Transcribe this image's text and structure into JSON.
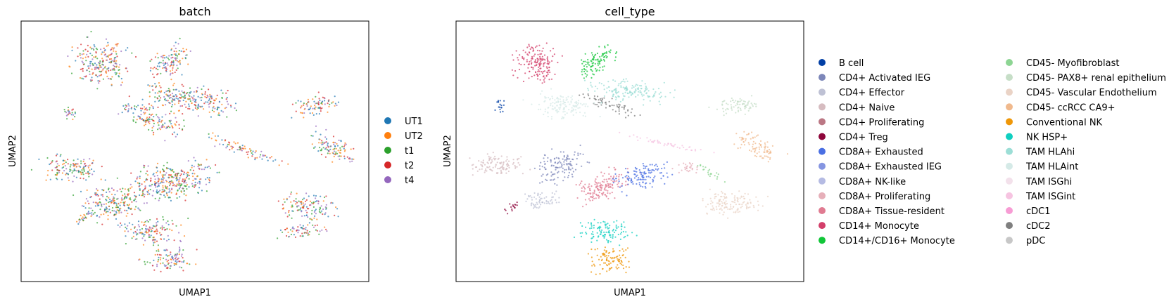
{
  "chart_data": [
    {
      "type": "scatter",
      "title": "batch",
      "xlabel": "UMAP1",
      "ylabel": "UMAP2",
      "grid": false,
      "legend_position": "right",
      "series": [
        {
          "name": "UT1",
          "color": "#1f77b4"
        },
        {
          "name": "UT2",
          "color": "#ff7f0e"
        },
        {
          "name": "t1",
          "color": "#2ca02c"
        },
        {
          "name": "t2",
          "color": "#d62728"
        },
        {
          "name": "t4",
          "color": "#9467bd"
        }
      ]
    },
    {
      "type": "scatter",
      "title": "cell_type",
      "xlabel": "UMAP1",
      "ylabel": "UMAP2",
      "grid": false,
      "legend_position": "right",
      "series": [
        {
          "name": "B cell",
          "color": "#023fa5"
        },
        {
          "name": "CD4+ Activated IEG",
          "color": "#7d87b9"
        },
        {
          "name": "CD4+ Effector",
          "color": "#bec1d4"
        },
        {
          "name": "CD4+ Naive",
          "color": "#d6bcc0"
        },
        {
          "name": "CD4+ Proliferating",
          "color": "#bb7784"
        },
        {
          "name": "CD4+ Treg",
          "color": "#8e063b"
        },
        {
          "name": "CD8A+ Exhausted",
          "color": "#4a6fe3"
        },
        {
          "name": "CD8A+ Exhausted IEG",
          "color": "#8595e1"
        },
        {
          "name": "CD8A+ NK-like",
          "color": "#b5bbe3"
        },
        {
          "name": "CD8A+ Proliferating",
          "color": "#e6afb9"
        },
        {
          "name": "CD8A+ Tissue-resident",
          "color": "#e07b91"
        },
        {
          "name": "CD14+ Monocyte",
          "color": "#d33f6a"
        },
        {
          "name": "CD14+/CD16+ Monocyte",
          "color": "#11c638"
        },
        {
          "name": "CD45- Myofibroblast",
          "color": "#8dd593"
        },
        {
          "name": "CD45- PAX8+ renal epithelium",
          "color": "#c6dec7"
        },
        {
          "name": "CD45- Vascular Endothelium",
          "color": "#ead3c6"
        },
        {
          "name": "CD45- ccRCC CA9+",
          "color": "#f0b98d"
        },
        {
          "name": "Conventional NK",
          "color": "#ef9708"
        },
        {
          "name": "NK HSP+",
          "color": "#0fcfc0"
        },
        {
          "name": "TAM HLAhi",
          "color": "#9cded6"
        },
        {
          "name": "TAM HLAint",
          "color": "#d5eae7"
        },
        {
          "name": "TAM ISGhi",
          "color": "#f3e1eb"
        },
        {
          "name": "TAM ISGint",
          "color": "#f6c4e1"
        },
        {
          "name": "cDC1",
          "color": "#f79cd4"
        },
        {
          "name": "cDC2",
          "color": "#7f7f7f"
        },
        {
          "name": "pDC",
          "color": "#c7c7c7"
        }
      ]
    }
  ]
}
